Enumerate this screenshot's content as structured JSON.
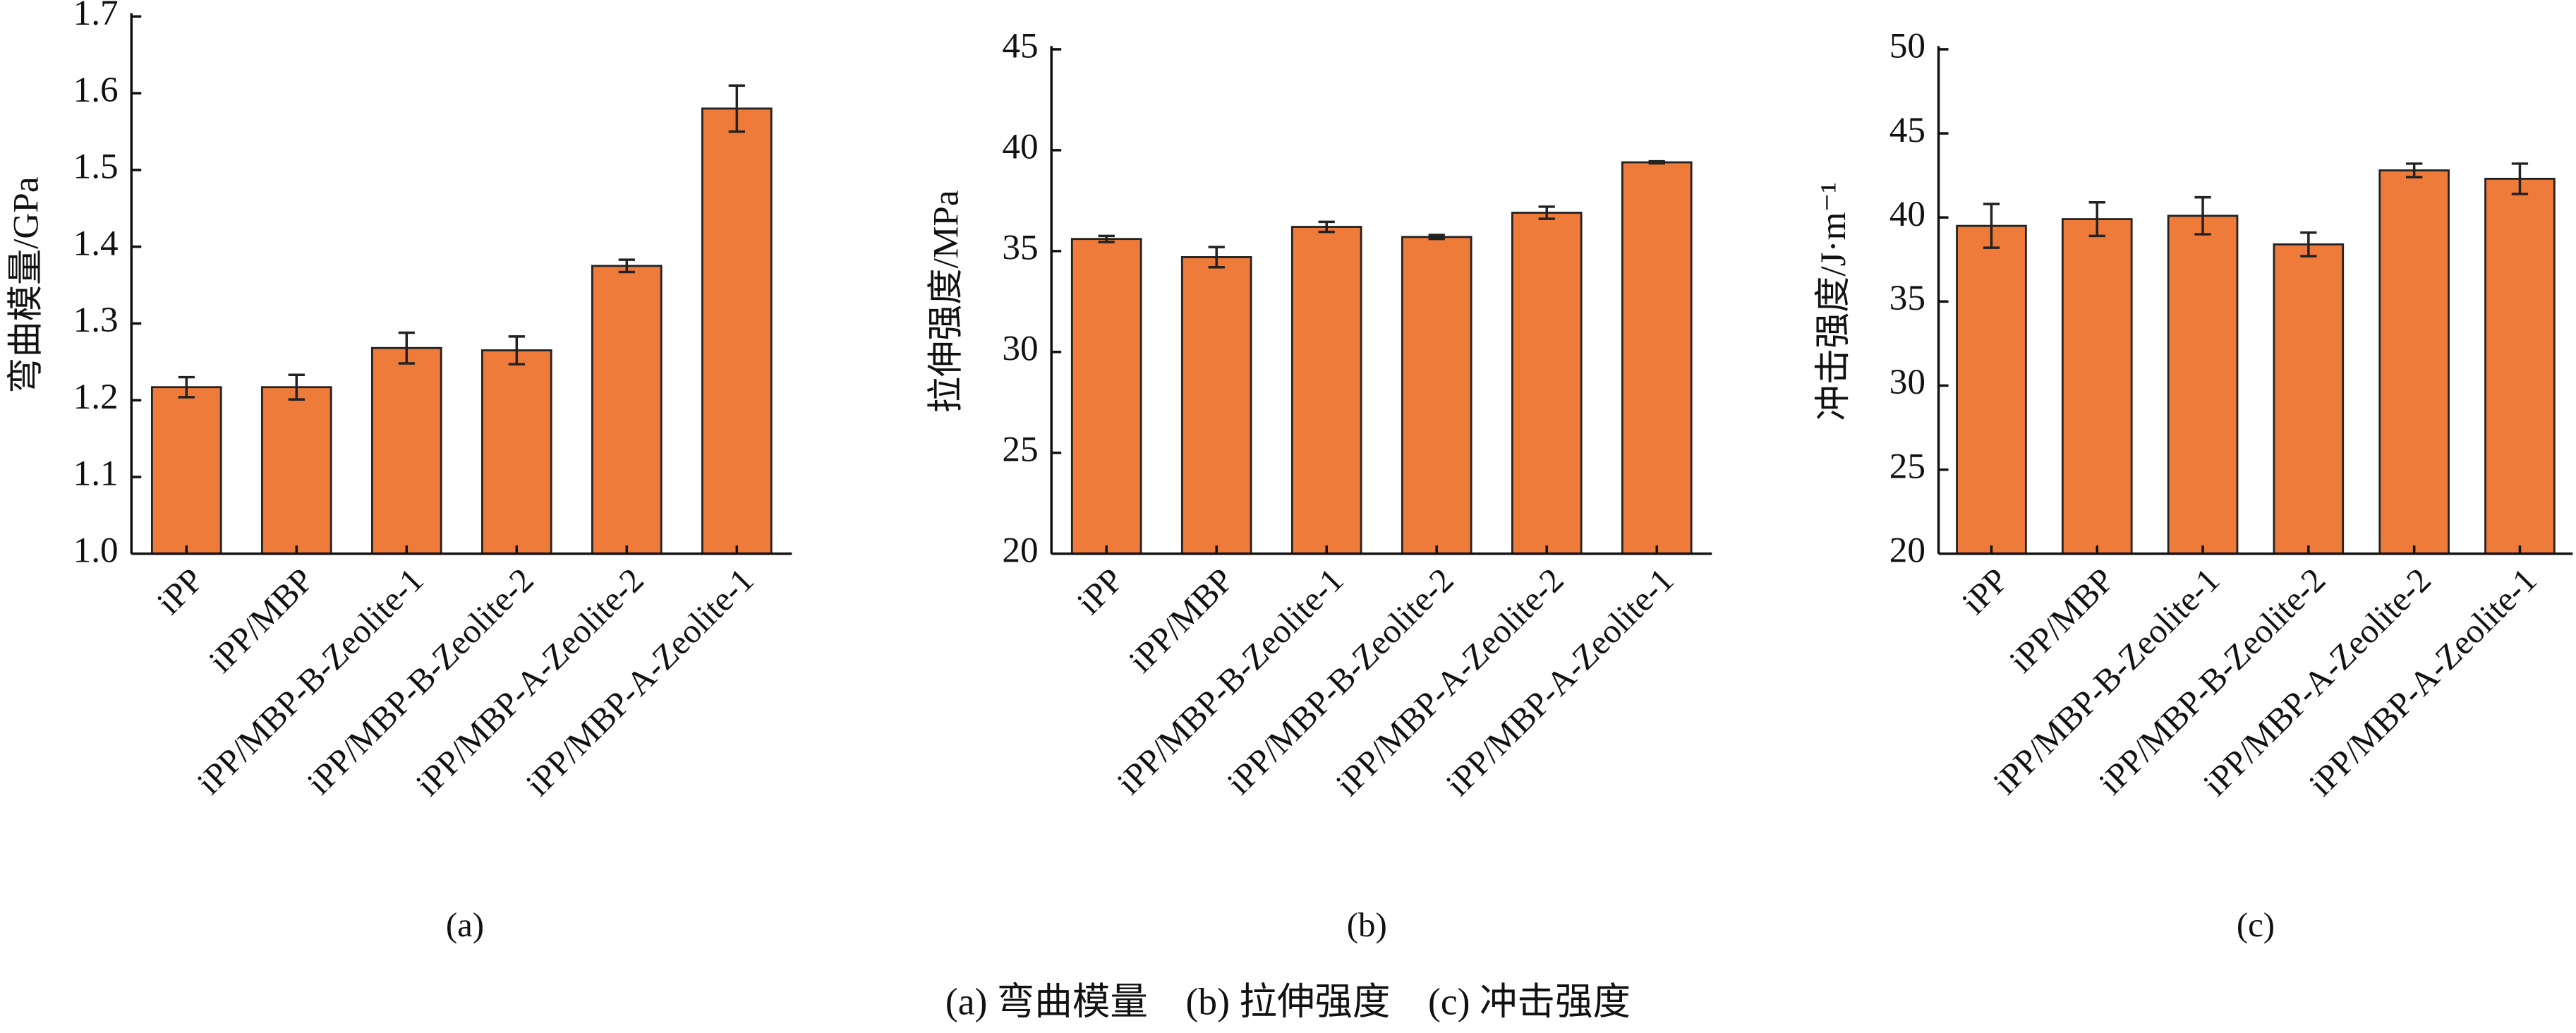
{
  "chart_data": [
    {
      "type": "bar",
      "ylabel": "弯曲模量/GPa",
      "label": "(a)",
      "categories": [
        "iPP",
        "iPP/MBP",
        "iPP/MBP-B-Zeolite-1",
        "iPP/MBP-B-Zeolite-2",
        "iPP/MBP-A-Zeolite-2",
        "iPP/MBP-A-Zeolite-1"
      ],
      "values": [
        1.217,
        1.217,
        1.268,
        1.265,
        1.375,
        1.58
      ],
      "errors": [
        0.013,
        0.016,
        0.02,
        0.018,
        0.008,
        0.03
      ],
      "color": "#ef7b3a",
      "ylim": [
        1.0,
        1.7
      ],
      "yticks": [
        {
          "value": 1,
          "label": "1.0"
        },
        1.1,
        1.2,
        1.3,
        1.4,
        1.5,
        1.6,
        1.7
      ]
    },
    {
      "type": "bar",
      "ylabel": "拉伸强度/MPa",
      "label": "(b)",
      "categories": [
        "iPP",
        "iPP/MBP",
        "iPP/MBP-B-Zeolite-1",
        "iPP/MBP-B-Zeolite-2",
        "iPP/MBP-A-Zeolite-2",
        "iPP/MBP-A-Zeolite-1"
      ],
      "values": [
        35.6,
        34.7,
        36.2,
        35.7,
        36.9,
        39.4
      ],
      "errors": [
        0.15,
        0.5,
        0.25,
        0.1,
        0.3,
        0.05
      ],
      "color": "#ef7b3a",
      "ylim": [
        20,
        45
      ],
      "yticks": [
        20,
        25,
        30,
        35,
        40,
        45
      ]
    },
    {
      "type": "bar",
      "ylabel": "冲击强度/J·m⁻¹",
      "label": "(c)",
      "categories": [
        "iPP",
        "iPP/MBP",
        "iPP/MBP-B-Zeolite-1",
        "iPP/MBP-B-Zeolite-2",
        "iPP/MBP-A-Zeolite-2",
        "iPP/MBP-A-Zeolite-1"
      ],
      "values": [
        39.5,
        39.9,
        40.1,
        38.4,
        42.8,
        42.3
      ],
      "errors": [
        1.3,
        1.0,
        1.1,
        0.7,
        0.4,
        0.9
      ],
      "color": "#ef7b3a",
      "ylim": [
        20,
        50
      ],
      "yticks": [
        20,
        25,
        30,
        35,
        40,
        45,
        50
      ]
    }
  ],
  "caption": "(a) 弯曲模量　(b) 拉伸强度　(c) 冲击强度"
}
